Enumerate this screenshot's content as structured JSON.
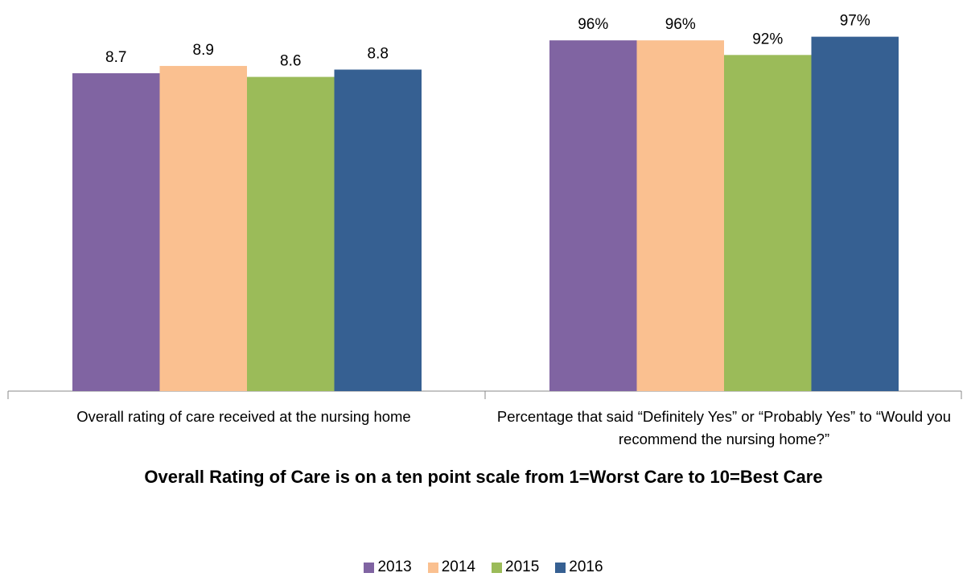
{
  "chart_data": [
    {
      "type": "bar",
      "categories": [
        "Overall rating of care received at the nursing home"
      ],
      "ylim": [
        0,
        10
      ],
      "series": [
        {
          "name": "2013",
          "color": "#8064a2",
          "values": [
            8.7
          ]
        },
        {
          "name": "2014",
          "color": "#fac090",
          "values": [
            8.9
          ]
        },
        {
          "name": "2015",
          "color": "#9bbb59",
          "values": [
            8.6
          ]
        },
        {
          "name": "2016",
          "color": "#366092",
          "values": [
            8.8
          ]
        }
      ]
    },
    {
      "type": "bar",
      "categories": [
        "Percentage that said “Definitely Yes” or “Probably Yes” to “Would you recommend the nursing home?”"
      ],
      "ylim": [
        0,
        100
      ],
      "series": [
        {
          "values": [
            96
          ],
          "value_labels": [
            "96%"
          ]
        },
        {
          "values": [
            96
          ],
          "value_labels": [
            "96%"
          ]
        },
        {
          "values": [
            92
          ],
          "value_labels": [
            "92%"
          ]
        },
        {
          "values": [
            97
          ],
          "value_labels": [
            "97%"
          ]
        }
      ]
    }
  ],
  "caption": "Overall Rating of Care is on a ten point scale from 1=Worst Care to 10=Best Care"
}
